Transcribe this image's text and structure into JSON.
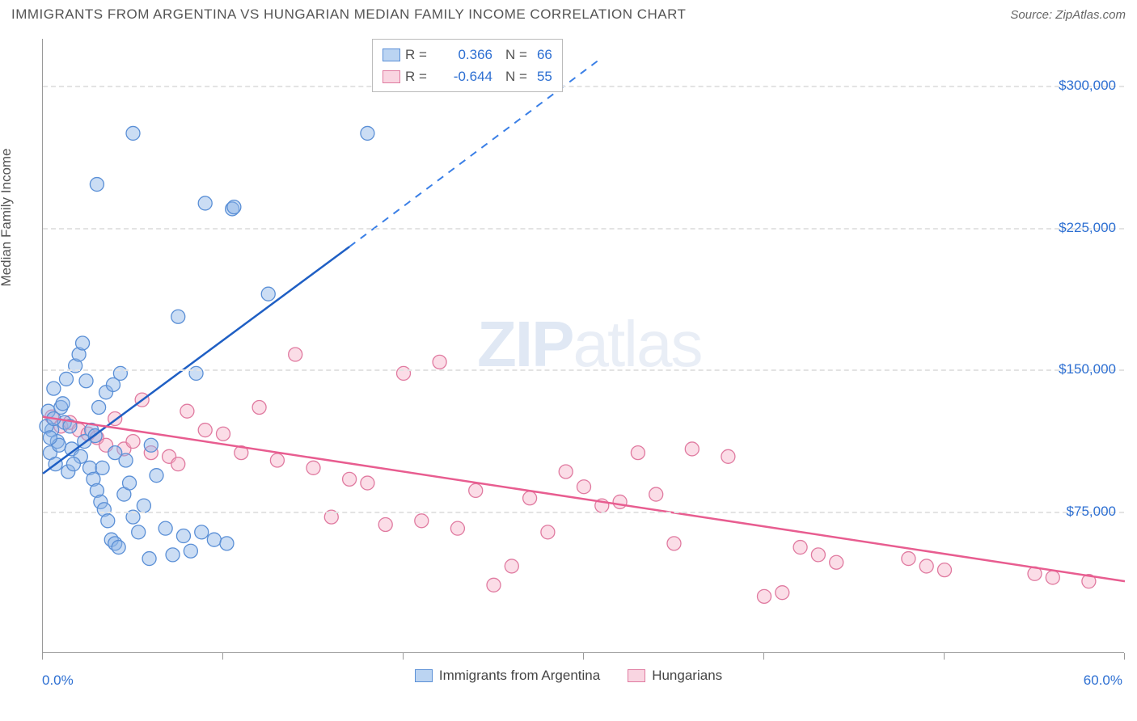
{
  "title": "IMMIGRANTS FROM ARGENTINA VS HUNGARIAN MEDIAN FAMILY INCOME CORRELATION CHART",
  "source_label": "Source: ",
  "source_value": "ZipAtlas.com",
  "watermark_a": "ZIP",
  "watermark_b": "atlas",
  "y_axis_title": "Median Family Income",
  "chart": {
    "type": "scatter",
    "background_color": "#ffffff",
    "grid_color": "#e3e3e3",
    "axis_color": "#999999",
    "text_color": "#555555",
    "value_color": "#2d6fd2",
    "xlim": [
      0,
      60
    ],
    "ylim": [
      0,
      325000
    ],
    "x_tick_positions_pct": [
      0,
      10,
      20,
      30,
      40,
      50,
      60
    ],
    "x_label_min": "0.0%",
    "x_label_max": "60.0%",
    "y_ticks": [
      {
        "v": 75000,
        "label": "$75,000"
      },
      {
        "v": 150000,
        "label": "$150,000"
      },
      {
        "v": 225000,
        "label": "$225,000"
      },
      {
        "v": 300000,
        "label": "$300,000"
      }
    ],
    "legend_top": [
      {
        "swatch": "blue",
        "r_label": "R =",
        "r_value": "0.366",
        "n_label": "N =",
        "n_value": "66"
      },
      {
        "swatch": "pink",
        "r_label": "R =",
        "r_value": "-0.644",
        "n_label": "N =",
        "n_value": "55"
      }
    ],
    "legend_bottom": [
      {
        "swatch": "blue",
        "label": "Immigrants from Argentina"
      },
      {
        "swatch": "pink",
        "label": "Hungarians"
      }
    ],
    "series_blue": {
      "color_fill": "rgba(140,180,230,0.45)",
      "color_stroke": "#5a8fd6",
      "trend_color": "#1f5fc4",
      "marker_radius": 8.5,
      "trend": {
        "x1": 0,
        "y1": 95000,
        "x2_solid": 17,
        "y2_solid": 215000,
        "x2": 31,
        "y2": 315000
      },
      "points": [
        [
          0.3,
          128000
        ],
        [
          0.5,
          118000
        ],
        [
          0.8,
          112000
        ],
        [
          0.6,
          140000
        ],
        [
          1.0,
          130000
        ],
        [
          1.2,
          122000
        ],
        [
          0.4,
          106000
        ],
        [
          0.7,
          100000
        ],
        [
          0.9,
          110000
        ],
        [
          1.1,
          132000
        ],
        [
          1.3,
          145000
        ],
        [
          1.5,
          120000
        ],
        [
          1.6,
          108000
        ],
        [
          1.8,
          152000
        ],
        [
          2.0,
          158000
        ],
        [
          2.2,
          164000
        ],
        [
          2.4,
          144000
        ],
        [
          2.6,
          98000
        ],
        [
          2.8,
          92000
        ],
        [
          3.0,
          86000
        ],
        [
          3.2,
          80000
        ],
        [
          3.4,
          76000
        ],
        [
          3.6,
          70000
        ],
        [
          3.8,
          60000
        ],
        [
          4.0,
          58000
        ],
        [
          4.2,
          56000
        ],
        [
          4.5,
          84000
        ],
        [
          4.8,
          90000
        ],
        [
          5.0,
          72000
        ],
        [
          5.3,
          64000
        ],
        [
          5.6,
          78000
        ],
        [
          5.9,
          50000
        ],
        [
          6.3,
          94000
        ],
        [
          6.8,
          66000
        ],
        [
          7.2,
          52000
        ],
        [
          7.5,
          178000
        ],
        [
          7.8,
          62000
        ],
        [
          8.2,
          54000
        ],
        [
          8.8,
          64000
        ],
        [
          9.5,
          60000
        ],
        [
          10.2,
          58000
        ],
        [
          2.1,
          104000
        ],
        [
          2.3,
          112000
        ],
        [
          2.7,
          118000
        ],
        [
          3.1,
          130000
        ],
        [
          3.5,
          138000
        ],
        [
          3.9,
          142000
        ],
        [
          4.3,
          148000
        ],
        [
          1.4,
          96000
        ],
        [
          1.7,
          100000
        ],
        [
          2.9,
          115000
        ],
        [
          3.3,
          98000
        ],
        [
          4.6,
          102000
        ],
        [
          6.0,
          110000
        ],
        [
          10.5,
          235000
        ],
        [
          10.6,
          236000
        ],
        [
          9.0,
          238000
        ],
        [
          5.0,
          275000
        ],
        [
          3.0,
          248000
        ],
        [
          8.5,
          148000
        ],
        [
          12.5,
          190000
        ],
        [
          4.0,
          106000
        ],
        [
          18.0,
          275000
        ],
        [
          0.2,
          120000
        ],
        [
          0.4,
          114000
        ],
        [
          0.6,
          124000
        ]
      ]
    },
    "series_pink": {
      "color_fill": "rgba(245,170,195,0.40)",
      "color_stroke": "#e07aa0",
      "trend_color": "#e85d90",
      "marker_radius": 8.5,
      "trend": {
        "x1": 0,
        "y1": 125000,
        "x2": 60,
        "y2": 38000
      },
      "points": [
        [
          0.5,
          125000
        ],
        [
          1.0,
          120000
        ],
        [
          1.5,
          122000
        ],
        [
          2.0,
          118000
        ],
        [
          2.5,
          116000
        ],
        [
          3.0,
          114000
        ],
        [
          3.5,
          110000
        ],
        [
          4.0,
          124000
        ],
        [
          4.5,
          108000
        ],
        [
          5.0,
          112000
        ],
        [
          5.5,
          134000
        ],
        [
          6.0,
          106000
        ],
        [
          7.0,
          104000
        ],
        [
          8.0,
          128000
        ],
        [
          9.0,
          118000
        ],
        [
          10.0,
          116000
        ],
        [
          11.0,
          106000
        ],
        [
          12.0,
          130000
        ],
        [
          13.0,
          102000
        ],
        [
          14.0,
          158000
        ],
        [
          15.0,
          98000
        ],
        [
          16.0,
          72000
        ],
        [
          17.0,
          92000
        ],
        [
          18.0,
          90000
        ],
        [
          19.0,
          68000
        ],
        [
          20.0,
          148000
        ],
        [
          21.0,
          70000
        ],
        [
          22.0,
          154000
        ],
        [
          23.0,
          66000
        ],
        [
          24.0,
          86000
        ],
        [
          25.0,
          36000
        ],
        [
          26.0,
          46000
        ],
        [
          27.0,
          82000
        ],
        [
          28.0,
          64000
        ],
        [
          29.0,
          96000
        ],
        [
          30.0,
          88000
        ],
        [
          31.0,
          78000
        ],
        [
          32.0,
          80000
        ],
        [
          33.0,
          106000
        ],
        [
          34.0,
          84000
        ],
        [
          35.0,
          58000
        ],
        [
          36.0,
          108000
        ],
        [
          38.0,
          104000
        ],
        [
          40.0,
          30000
        ],
        [
          41.0,
          32000
        ],
        [
          42.0,
          56000
        ],
        [
          43.0,
          52000
        ],
        [
          44.0,
          48000
        ],
        [
          48.0,
          50000
        ],
        [
          49.0,
          46000
        ],
        [
          50.0,
          44000
        ],
        [
          55.0,
          42000
        ],
        [
          56.0,
          40000
        ],
        [
          58.0,
          38000
        ],
        [
          7.5,
          100000
        ]
      ]
    }
  }
}
